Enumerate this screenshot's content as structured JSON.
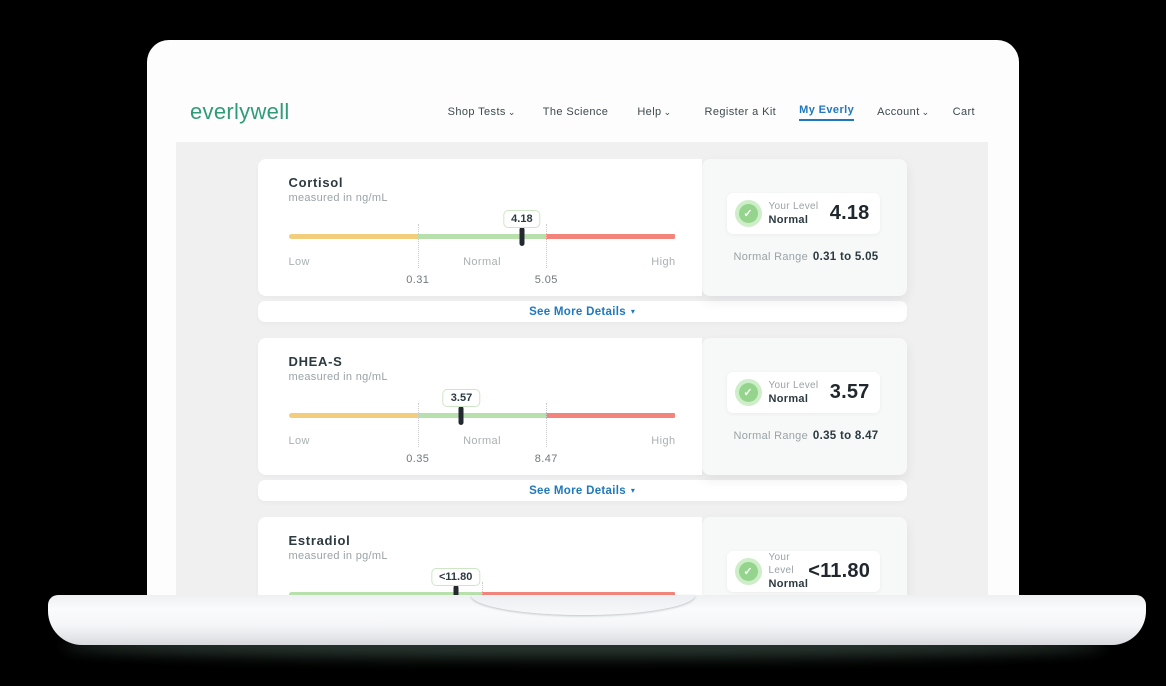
{
  "colors": {
    "brand_green": "#2f9c78",
    "link_blue": "#1f78be",
    "bar_yellow": "#f2cd7b",
    "bar_green": "#b7e0ad",
    "bar_red": "#f2847c",
    "check_green": "#94d48d"
  },
  "icons": {
    "chevron_down": "⌄",
    "dropdown_triangle": "▾",
    "check": "✓"
  },
  "brand": {
    "logo_text": "everlywell"
  },
  "nav": {
    "left": [
      {
        "label": "Shop Tests",
        "chevron": "⌄"
      },
      {
        "label": "The Science",
        "chevron": ""
      },
      {
        "label": "Help",
        "chevron": "⌄"
      }
    ],
    "right": [
      {
        "label": "Register a Kit",
        "chevron": ""
      },
      {
        "label": "My Everly",
        "chevron": ""
      },
      {
        "label": "Account",
        "chevron": "⌄"
      },
      {
        "label": "Cart",
        "chevron": ""
      }
    ]
  },
  "cards": [
    {
      "title": "Cortisol",
      "unit": "measured in ng/mL",
      "badge": "4.18",
      "badge_style": "left:60.3%",
      "marker_style": "left:60.3%",
      "dot1_style": "left:33.4%",
      "dot2_style": "left:66.6%",
      "seg1_style": "width:33.4%",
      "seg2_style": "width:33.2%",
      "seg3_style": "width:33.4%",
      "zone_low": "Low",
      "zone_normal": "Normal",
      "zone_high": "High",
      "bound1": "0.31",
      "bound1_style": "left:33.4%",
      "bound2": "5.05",
      "bound2_style": "left:66.6%",
      "level_label": "Your Level",
      "status": "Normal",
      "value": "4.18",
      "range_label": "Normal Range",
      "range_value": "0.31 to 5.05",
      "see_more": "See More Details",
      "see_more_icon": "▾"
    },
    {
      "title": "DHEA-S",
      "unit": "measured in ng/mL",
      "badge": "3.57",
      "badge_style": "left:44.7%",
      "marker_style": "left:44.7%",
      "dot1_style": "left:33.4%",
      "dot2_style": "left:66.6%",
      "seg1_style": "width:33.4%",
      "seg2_style": "width:33.2%",
      "seg3_style": "width:33.4%",
      "zone_low": "Low",
      "zone_normal": "Normal",
      "zone_high": "High",
      "bound1": "0.35",
      "bound1_style": "left:33.4%",
      "bound2": "8.47",
      "bound2_style": "left:66.6%",
      "level_label": "Your Level",
      "status": "Normal",
      "value": "3.57",
      "range_label": "Normal Range",
      "range_value": "0.35 to 8.47",
      "see_more": "See More Details",
      "see_more_icon": "▾"
    },
    {
      "title": "Estradiol",
      "unit": "measured in pg/mL",
      "badge": "<11.80",
      "badge_style": "left:43.2%",
      "marker_style": "left:43.2%",
      "dot1_style": "left:49.9%",
      "dot2_style": "display:none",
      "seg1_style": "width:0%",
      "seg2_style": "width:49.9%",
      "seg3_style": "width:50.1%",
      "zone_low": "",
      "zone_normal": "",
      "zone_high": "",
      "bound1": "",
      "bound1_style": "display:none",
      "bound2": "",
      "bound2_style": "display:none",
      "level_label": "Your Level",
      "status": "Normal",
      "value": "<11.80",
      "range_label": "",
      "range_value": "",
      "see_more": "",
      "see_more_icon": ""
    }
  ]
}
